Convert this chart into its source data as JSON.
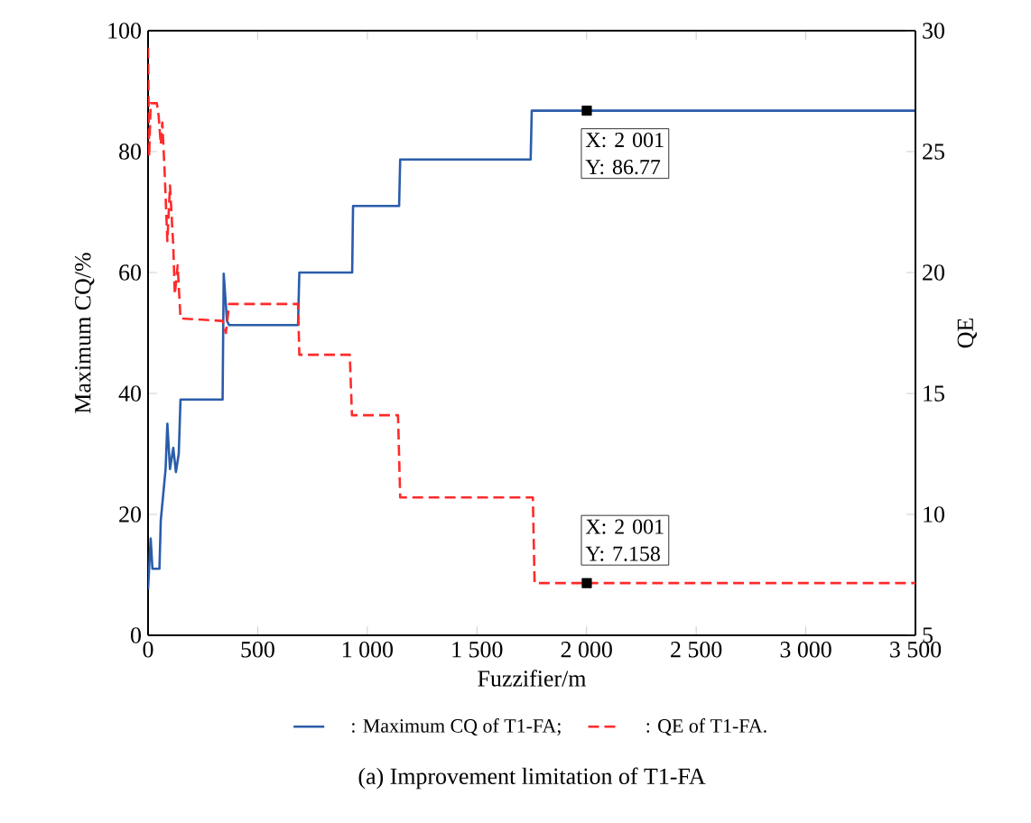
{
  "chart_data": {
    "type": "line",
    "title": "(a) Improvement limitation of T1-FA",
    "xlabel": "Fuzzifier/m",
    "ylabel": "Maximum CQ/%",
    "y2label": "QE",
    "xlim": [
      0,
      3500
    ],
    "xticks": [
      0,
      500,
      {
        "value": 1000,
        "label": "1 000"
      },
      {
        "value": 1500,
        "label": "1 500"
      },
      {
        "value": 2000,
        "label": "2 000"
      },
      {
        "value": 2500,
        "label": "2 500"
      },
      {
        "value": 3000,
        "label": "3 000"
      },
      {
        "value": 3500,
        "label": "3 500"
      }
    ],
    "ylim": [
      0,
      100
    ],
    "yticks": [
      0,
      20,
      40,
      60,
      80,
      100
    ],
    "y2lim": [
      5,
      30
    ],
    "y2ticks": [
      5,
      10,
      15,
      20,
      25,
      30
    ],
    "legend": "bottom",
    "grid": false,
    "marker": "none",
    "series": [
      {
        "name": ": Maximum CQ of T1-FA;",
        "color": "#2a5caa",
        "line_style": "solid",
        "x": [
          0,
          12,
          20,
          52,
          58,
          80,
          88,
          100,
          115,
          127,
          140,
          148,
          340,
          345,
          360,
          370,
          684,
          690,
          931,
          935,
          1145,
          1150,
          1745,
          1750,
          3500
        ],
        "values": [
          7.6,
          16,
          11,
          11,
          19,
          27.5,
          35,
          27.5,
          31,
          27,
          30,
          39,
          39,
          59.8,
          52,
          51.3,
          51.3,
          60,
          60,
          71,
          71,
          78.7,
          78.7,
          86.77,
          86.77
        ]
      },
      {
        "name": ": QE of T1-FA.",
        "color": "#ff2a2a",
        "line_style": "dashed",
        "axis": "y2",
        "x": [
          0,
          5,
          12,
          40,
          48,
          58,
          65,
          75,
          88,
          100,
          115,
          122,
          135,
          148,
          340,
          355,
          370,
          684,
          690,
          920,
          930,
          1140,
          1150,
          1755,
          1763,
          3500
        ],
        "values": [
          29.3,
          24.8,
          27,
          27,
          26.5,
          25.3,
          26.2,
          24.3,
          21.3,
          23.6,
          21.1,
          19.1,
          20.3,
          18.1,
          18,
          17.5,
          18.7,
          18.7,
          16.6,
          16.6,
          14.1,
          14.1,
          10.7,
          10.7,
          7.158,
          7.158
        ]
      },
      {
        "type": "scatter",
        "marker": "square",
        "color": "#000000",
        "x": [
          2001
        ],
        "values": [
          86.77
        ]
      },
      {
        "type": "scatter",
        "marker": "square",
        "color": "#000000",
        "axis": "y2",
        "x": [
          2001
        ],
        "values": [
          7.158
        ]
      }
    ],
    "annotations": [
      "X: 2 001",
      "Y: 86.77",
      "X: 2 001",
      "Y: 7.158"
    ]
  }
}
